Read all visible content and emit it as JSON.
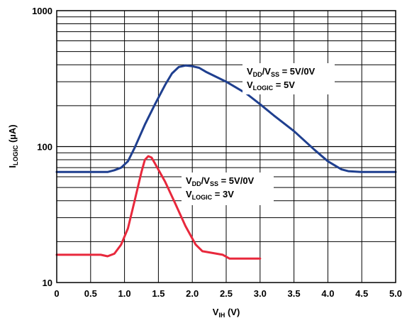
{
  "chart_data": {
    "type": "line",
    "xlabel_main": "V",
    "xlabel_sub": "IH",
    "xlabel_rest": " (V)",
    "ylabel_main": "I",
    "ylabel_sub": "LOGIC",
    "ylabel_rest": " (µA)",
    "xlim": [
      0,
      5.0
    ],
    "ylim": [
      10,
      1000
    ],
    "yscale": "log",
    "grid": true,
    "x_ticks": [
      {
        "v": 0,
        "label": "0"
      },
      {
        "v": 0.5,
        "label": "0.5"
      },
      {
        "v": 1.0,
        "label": "1.0"
      },
      {
        "v": 1.5,
        "label": "1.5"
      },
      {
        "v": 2.0,
        "label": "2.0"
      },
      {
        "v": 2.5,
        "label": "2.5"
      },
      {
        "v": 3.0,
        "label": "3.0"
      },
      {
        "v": 3.5,
        "label": "3.5"
      },
      {
        "v": 4.0,
        "label": "4.0"
      },
      {
        "v": 4.5,
        "label": "4.5"
      },
      {
        "v": 5.0,
        "label": "5.0"
      }
    ],
    "y_ticks": [
      {
        "v": 10,
        "label": "10"
      },
      {
        "v": 100,
        "label": "100"
      },
      {
        "v": 1000,
        "label": "1000"
      }
    ],
    "series": [
      {
        "color": "#1f3f8f",
        "annotation": [
          {
            "main": "V",
            "sub": "DD",
            "mid": "/V",
            "sub2": "SS",
            "rest": " = 5V/0V"
          },
          {
            "main": "V",
            "sub": "LOGIC",
            "rest": " = 5V"
          }
        ],
        "x": [
          0,
          0.3,
          0.6,
          0.75,
          0.85,
          0.95,
          1.05,
          1.15,
          1.3,
          1.45,
          1.6,
          1.7,
          1.8,
          1.9,
          2.0,
          2.1,
          2.2,
          2.5,
          2.8,
          3.0,
          3.2,
          3.5,
          3.8,
          4.0,
          4.2,
          4.3,
          4.5,
          5.0
        ],
        "y": [
          65,
          65,
          65,
          65,
          67,
          70,
          78,
          98,
          145,
          205,
          285,
          345,
          385,
          395,
          390,
          380,
          355,
          300,
          245,
          205,
          170,
          130,
          95,
          78,
          68,
          66,
          65,
          65
        ]
      },
      {
        "color": "#e8283c",
        "annotation": [
          {
            "main": "V",
            "sub": "DD",
            "mid": "/V",
            "sub2": "SS",
            "rest": " = 5V/0V"
          },
          {
            "main": "V",
            "sub": "LOGIC",
            "rest": " = 3V"
          }
        ],
        "x": [
          0,
          0.5,
          0.65,
          0.75,
          0.85,
          0.95,
          1.05,
          1.15,
          1.25,
          1.3,
          1.35,
          1.4,
          1.45,
          1.6,
          1.75,
          1.9,
          2.05,
          2.15,
          2.3,
          2.45,
          2.55,
          3.0
        ],
        "y": [
          16,
          16,
          16,
          15.6,
          16.3,
          19,
          25,
          40,
          65,
          80,
          85,
          83,
          75,
          55,
          38,
          26,
          19,
          17,
          16.5,
          16,
          15,
          15
        ]
      }
    ]
  }
}
